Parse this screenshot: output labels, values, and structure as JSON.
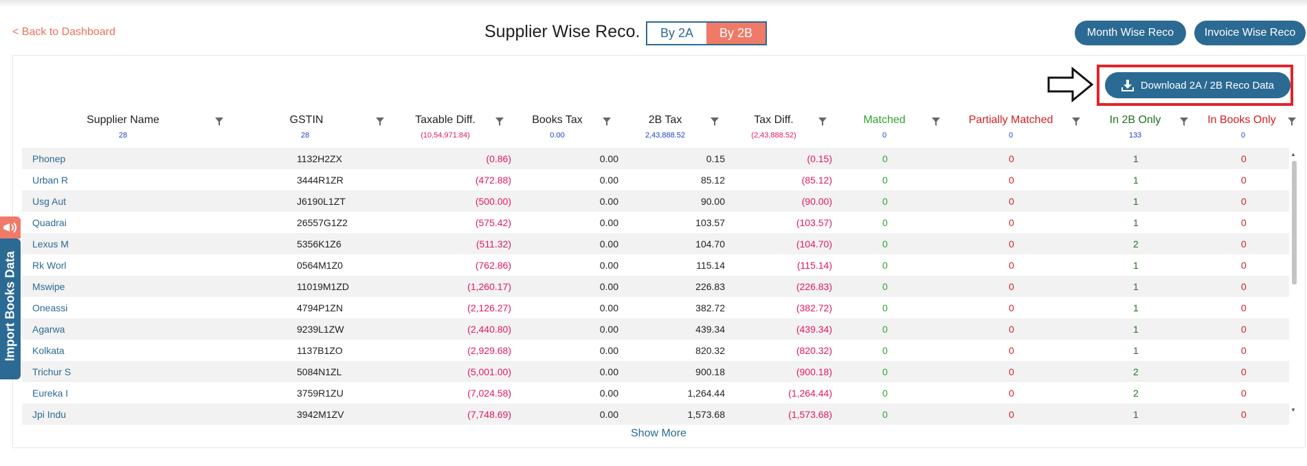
{
  "nav": {
    "back_label": "< Back to Dashboard"
  },
  "page": {
    "title": "Supplier Wise Reco."
  },
  "toggle": {
    "by_2a": "By 2A",
    "by_2b": "By 2B",
    "active": "By 2B"
  },
  "actions": {
    "month_wise": "Month Wise Reco",
    "invoice_wise": "Invoice Wise Reco",
    "download": "Download 2A / 2B Reco Data"
  },
  "sidebar_tab": {
    "label": "Import Books Data"
  },
  "columns": [
    {
      "label": "Supplier Name",
      "total": "28"
    },
    {
      "label": "GSTIN",
      "total": "28"
    },
    {
      "label": "Taxable Diff.",
      "total": "(10,54,971.84)"
    },
    {
      "label": "Books Tax",
      "total": "0.00"
    },
    {
      "label": "2B Tax",
      "total": "2,43,888.52"
    },
    {
      "label": "Tax Diff.",
      "total": "(2,43,888.52)"
    },
    {
      "label": "Matched",
      "total": "0"
    },
    {
      "label": "Partially Matched",
      "total": "0"
    },
    {
      "label": "In 2B Only",
      "total": "133"
    },
    {
      "label": "In Books Only",
      "total": "0"
    }
  ],
  "rows": [
    {
      "name": "Phonep",
      "gstin": "1132H2ZX",
      "taxable_diff": "(0.86)",
      "books_tax": "0.00",
      "tax_2b": "0.15",
      "tax_diff": "(0.15)",
      "matched": "0",
      "partial": "0",
      "in_2b": "1",
      "in_books": "0"
    },
    {
      "name": "Urban R",
      "gstin": "3444R1ZR",
      "taxable_diff": "(472.88)",
      "books_tax": "0.00",
      "tax_2b": "85.12",
      "tax_diff": "(85.12)",
      "matched": "0",
      "partial": "0",
      "in_2b": "1",
      "in_books": "0"
    },
    {
      "name": "Usg Aut",
      "gstin": "J6190L1ZT",
      "taxable_diff": "(500.00)",
      "books_tax": "0.00",
      "tax_2b": "90.00",
      "tax_diff": "(90.00)",
      "matched": "0",
      "partial": "0",
      "in_2b": "1",
      "in_books": "0"
    },
    {
      "name": "Quadrai",
      "gstin": "26557G1Z2",
      "taxable_diff": "(575.42)",
      "books_tax": "0.00",
      "tax_2b": "103.57",
      "tax_diff": "(103.57)",
      "matched": "0",
      "partial": "0",
      "in_2b": "1",
      "in_books": "0"
    },
    {
      "name": "Lexus M",
      "gstin": "5356K1Z6",
      "taxable_diff": "(511.32)",
      "books_tax": "0.00",
      "tax_2b": "104.70",
      "tax_diff": "(104.70)",
      "matched": "0",
      "partial": "0",
      "in_2b": "2",
      "in_books": "0"
    },
    {
      "name": "Rk Worl",
      "gstin": "0564M1Z0",
      "taxable_diff": "(762.86)",
      "books_tax": "0.00",
      "tax_2b": "115.14",
      "tax_diff": "(115.14)",
      "matched": "0",
      "partial": "0",
      "in_2b": "1",
      "in_books": "0"
    },
    {
      "name": "Mswipe",
      "gstin": "11019M1ZD",
      "taxable_diff": "(1,260.17)",
      "books_tax": "0.00",
      "tax_2b": "226.83",
      "tax_diff": "(226.83)",
      "matched": "0",
      "partial": "0",
      "in_2b": "1",
      "in_books": "0"
    },
    {
      "name": "Oneassi",
      "gstin": "4794P1ZN",
      "taxable_diff": "(2,126.27)",
      "books_tax": "0.00",
      "tax_2b": "382.72",
      "tax_diff": "(382.72)",
      "matched": "0",
      "partial": "0",
      "in_2b": "1",
      "in_books": "0"
    },
    {
      "name": "Agarwa",
      "gstin": "9239L1ZW",
      "taxable_diff": "(2,440.80)",
      "books_tax": "0.00",
      "tax_2b": "439.34",
      "tax_diff": "(439.34)",
      "matched": "0",
      "partial": "0",
      "in_2b": "1",
      "in_books": "0"
    },
    {
      "name": "Kolkata",
      "gstin": "1137B1ZO",
      "taxable_diff": "(2,929.68)",
      "books_tax": "0.00",
      "tax_2b": "820.32",
      "tax_diff": "(820.32)",
      "matched": "0",
      "partial": "0",
      "in_2b": "1",
      "in_books": "0"
    },
    {
      "name": "Trichur S",
      "gstin": "5084N1ZL",
      "taxable_diff": "(5,001.00)",
      "books_tax": "0.00",
      "tax_2b": "900.18",
      "tax_diff": "(900.18)",
      "matched": "0",
      "partial": "0",
      "in_2b": "2",
      "in_books": "0"
    },
    {
      "name": "Eureka I",
      "gstin": "3759R1ZU",
      "taxable_diff": "(7,024.58)",
      "books_tax": "0.00",
      "tax_2b": "1,264.44",
      "tax_diff": "(1,264.44)",
      "matched": "0",
      "partial": "0",
      "in_2b": "2",
      "in_books": "0"
    },
    {
      "name": "Jpi Indu",
      "gstin": "3942M1ZV",
      "taxable_diff": "(7,748.69)",
      "books_tax": "0.00",
      "tax_2b": "1,573.68",
      "tax_diff": "(1,573.68)",
      "matched": "0",
      "partial": "0",
      "in_2b": "1",
      "in_books": "0"
    }
  ],
  "footer": {
    "show_more": "Show More"
  },
  "colors": {
    "primary": "#2b6a93",
    "accent": "#ef7a68",
    "highlight_border": "#e0242b",
    "negative": "#e0185e",
    "matched": "#2fa12f",
    "partial": "#d1211f",
    "in_2b": "#1f6f1f",
    "in_books": "#d1211f"
  },
  "icons": [
    "filter-icon",
    "download-icon",
    "arrow-right-icon",
    "megaphone-icon"
  ]
}
